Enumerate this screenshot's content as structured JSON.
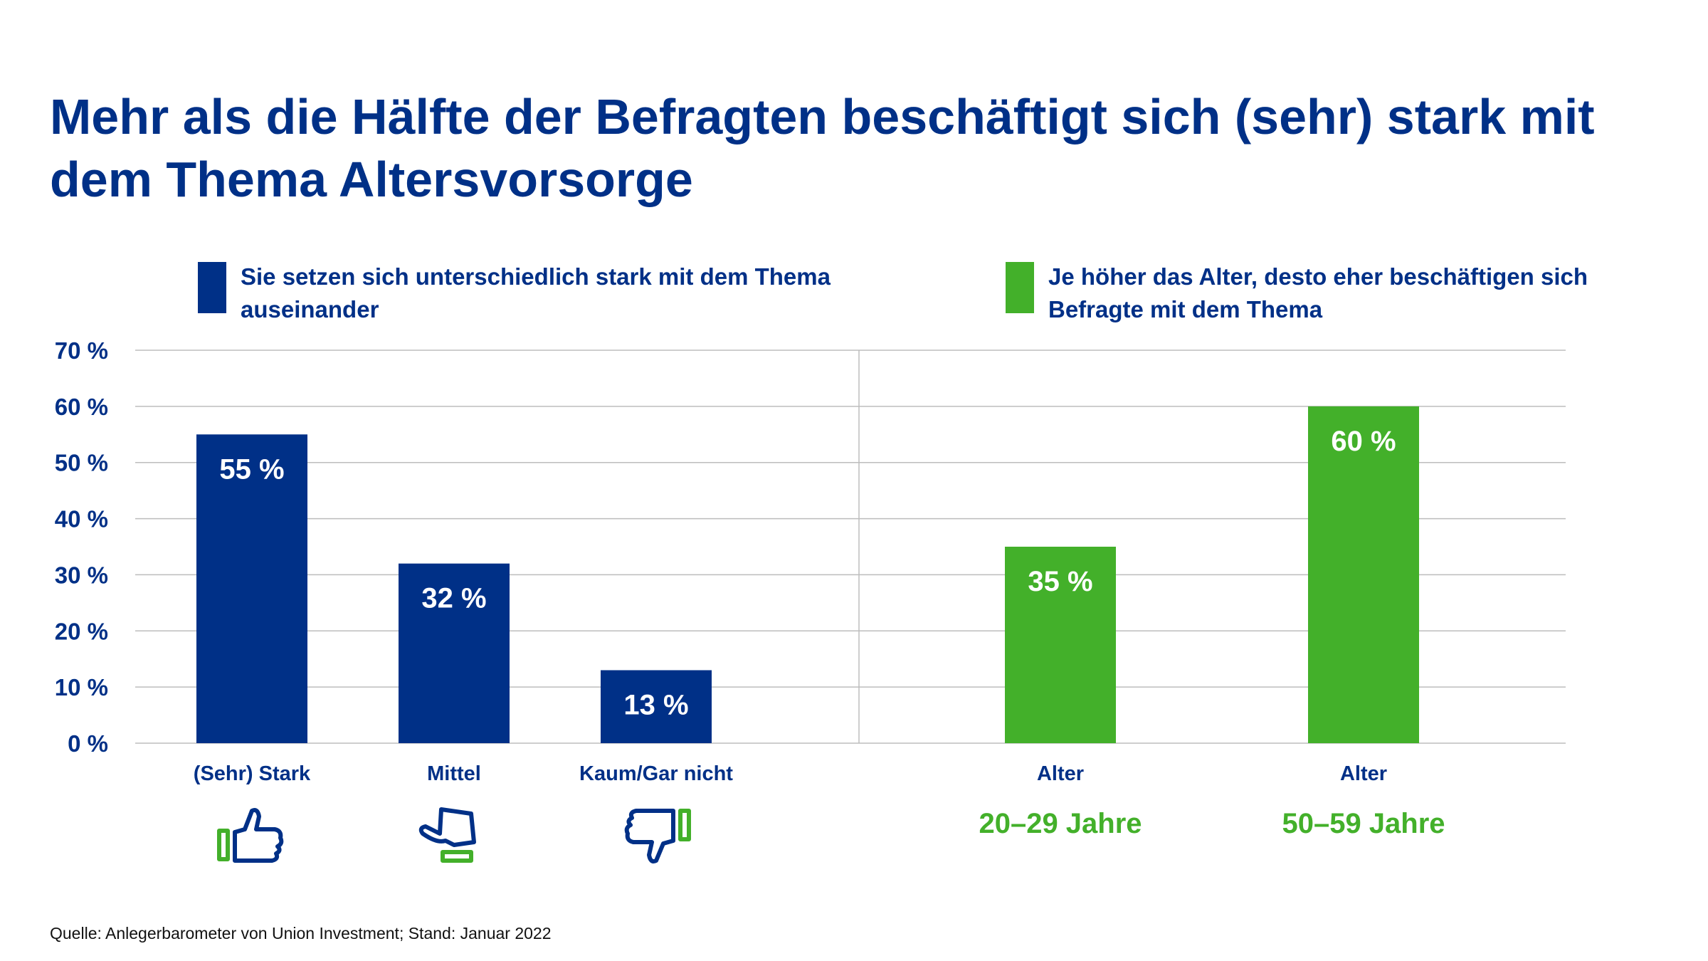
{
  "title": "Mehr als die Hälfte der Befragten beschäftigt sich (sehr) stark mit dem Thema Altersvorsorge",
  "legend": [
    {
      "text": "Sie setzen sich unterschiedlich stark mit dem Thema auseinander",
      "color": "#003087"
    },
    {
      "text": "Je höher das Alter, desto eher beschäftigen sich Befragte mit dem Thema",
      "color": "#43B02A"
    }
  ],
  "source": "Quelle: Anlegerbarometer von Union Investment; Stand: Januar 2022",
  "colors": {
    "blue": "#003087",
    "green": "#43B02A",
    "grid": "#bdbdbd",
    "bar_label": "#ffffff"
  },
  "chart_data": {
    "type": "bar",
    "ylim": [
      0,
      70
    ],
    "yticks": [
      "0 %",
      "10 %",
      "20 %",
      "30 %",
      "40 %",
      "50 %",
      "60 %",
      "70 %"
    ],
    "grid": true,
    "groups": [
      {
        "name": "Sie setzen sich unterschiedlich stark mit dem Thema auseinander",
        "color": "#003087",
        "bars": [
          {
            "category": "(Sehr) Stark",
            "value": 55,
            "label": "55 %",
            "icon": "thumbs-up-icon"
          },
          {
            "category": "Mittel",
            "value": 32,
            "label": "32 %",
            "icon": "thumb-sideways-icon"
          },
          {
            "category": "Kaum/Gar nicht",
            "value": 13,
            "label": "13 %",
            "icon": "thumbs-down-icon"
          }
        ]
      },
      {
        "name": "Je höher das Alter, desto eher beschäftigen sich Befragte mit dem Thema",
        "color": "#43B02A",
        "bars": [
          {
            "category": "Alter",
            "sublabel": "20–29 Jahre",
            "value": 35,
            "label": "35 %"
          },
          {
            "category": "Alter",
            "sublabel": "50–59 Jahre",
            "value": 60,
            "label": "60 %"
          }
        ]
      }
    ]
  }
}
